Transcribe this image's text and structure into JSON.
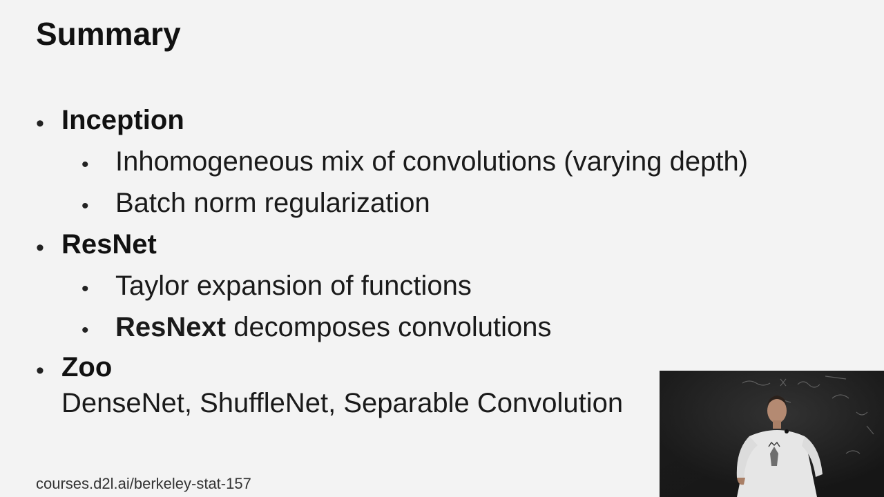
{
  "slide": {
    "title": "Summary",
    "items": [
      {
        "heading": "Inception",
        "subitems": [
          {
            "text": "Inhomogeneous mix of convolutions (varying depth)"
          },
          {
            "text": "Batch norm regularization"
          }
        ]
      },
      {
        "heading": "ResNet",
        "subitems": [
          {
            "text": "Taylor expansion of functions"
          },
          {
            "bold": "ResNext",
            "text": " decomposes convolutions"
          }
        ]
      },
      {
        "heading": "Zoo",
        "continuation": "DenseNet, ShuffleNet, Separable Convolution"
      }
    ],
    "footer": "courses.d2l.ai/berkeley-stat-157"
  },
  "bullet_glyph": "•",
  "video_inset": {
    "icon": "presenter-video"
  },
  "colors": {
    "background": "#f3f3f3",
    "text": "#1a1a1a",
    "video_background": "#1b1b1b"
  }
}
